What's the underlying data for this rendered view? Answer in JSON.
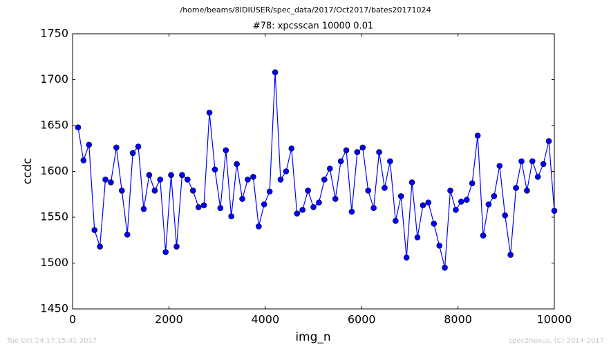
{
  "chart_data": {
    "type": "line",
    "suptitle": "/home/beams/8IDIUSER/spec_data/2017/Oct2017/bates20171024",
    "title": "#78: xpcsscan 10000 0.01",
    "x_label": "img_n",
    "y_label": "ccdc",
    "footer_left": "Tue Oct 24 17:15:41 2017",
    "footer_right": "spec2nexus, (C) 2014-2017",
    "color": "#0000ff",
    "x": [
      114,
      227,
      341,
      455,
      568,
      682,
      795,
      909,
      1023,
      1136,
      1250,
      1364,
      1477,
      1591,
      1705,
      1818,
      1932,
      2045,
      2159,
      2273,
      2386,
      2500,
      2614,
      2727,
      2841,
      2955,
      3068,
      3182,
      3295,
      3409,
      3523,
      3636,
      3750,
      3864,
      3977,
      4091,
      4205,
      4318,
      4432,
      4545,
      4659,
      4773,
      4886,
      5000,
      5114,
      5227,
      5341,
      5455,
      5568,
      5682,
      5795,
      5909,
      6023,
      6136,
      6250,
      6364,
      6477,
      6591,
      6705,
      6818,
      6932,
      7045,
      7159,
      7273,
      7386,
      7500,
      7614,
      7727,
      7841,
      7955,
      8068,
      8182,
      8295,
      8409,
      8523,
      8636,
      8750,
      8864,
      8977,
      9091,
      9205,
      9318,
      9432,
      9545,
      9659,
      9773,
      9886,
      10000
    ],
    "values": [
      1648,
      1612,
      1629,
      1536,
      1518,
      1591,
      1588,
      1626,
      1579,
      1531,
      1620,
      1627,
      1559,
      1596,
      1579,
      1591,
      1512,
      1596,
      1518,
      1596,
      1591,
      1579,
      1561,
      1563,
      1664,
      1602,
      1560,
      1623,
      1551,
      1608,
      1570,
      1591,
      1594,
      1540,
      1564,
      1578,
      1708,
      1591,
      1600,
      1625,
      1554,
      1558,
      1579,
      1561,
      1566,
      1591,
      1603,
      1570,
      1611,
      1623,
      1556,
      1621,
      1626,
      1579,
      1560,
      1621,
      1582,
      1611,
      1546,
      1573,
      1506,
      1588,
      1528,
      1563,
      1566,
      1543,
      1519,
      1495,
      1579,
      1558,
      1567,
      1569,
      1587,
      1639,
      1530,
      1564,
      1573,
      1606,
      1552,
      1509,
      1582,
      1611,
      1579,
      1611,
      1594,
      1608,
      1633,
      1557
    ],
    "xlim": [
      0,
      10000
    ],
    "xticks": [
      0,
      2000,
      4000,
      6000,
      8000,
      10000
    ],
    "ylim": [
      1450,
      1750
    ],
    "yticks": [
      1450,
      1500,
      1550,
      1600,
      1650,
      1700,
      1750
    ],
    "grid": false
  }
}
